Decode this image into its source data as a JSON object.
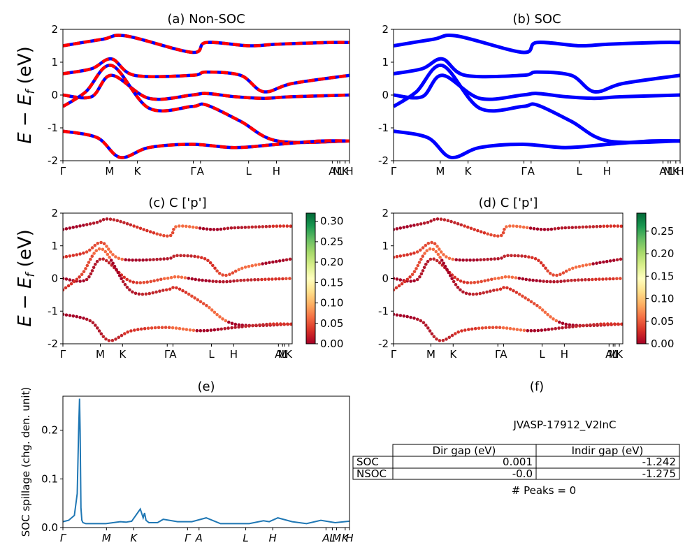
{
  "colors": {
    "nonsoc_red": "#ff0000",
    "nonsoc_blue": "#0000ff",
    "soc_blue": "#0000ff",
    "spillage_line": "#1f77b4"
  },
  "kpath_labels": [
    "Γ",
    "M",
    "K",
    "Γ",
    "A",
    "L",
    "H",
    "A",
    "M",
    "L",
    "K",
    "H"
  ],
  "kpath_labels_italic": [
    "Γ",
    "M",
    "K",
    "Γ",
    "A",
    "L",
    "H",
    "A",
    "L",
    "M",
    "K",
    "H"
  ],
  "bands_ylabel": "E − E_f (eV)",
  "chart_data": [
    {
      "id": "a",
      "type": "line",
      "title": "(a) Non-SOC",
      "ylabel": "E − E_f (eV)",
      "ylim": [
        -2,
        2
      ],
      "yticks": [
        -2,
        -1,
        0,
        1,
        2
      ],
      "xticklabels": [
        "Γ",
        "M",
        "K",
        "Γ",
        "A",
        "L",
        "H",
        "A",
        "M",
        "L",
        "K",
        "H"
      ],
      "series": [
        {
          "values_x": [
            0,
            0.14,
            0.22,
            0.45,
            0.5,
            0.65,
            0.75,
            0.93,
            1.0
          ],
          "values": [
            1.5,
            1.7,
            1.8,
            1.3,
            1.6,
            1.5,
            1.55,
            1.6,
            1.6
          ]
        },
        {
          "values_x": [
            0,
            0.1,
            0.17,
            0.25,
            0.45,
            0.5,
            0.62,
            0.7,
            0.8,
            1.0
          ],
          "values": [
            0.65,
            0.8,
            1.1,
            0.6,
            0.6,
            0.7,
            0.6,
            0.1,
            0.35,
            0.6
          ]
        },
        {
          "values_x": [
            0,
            0.1,
            0.17,
            0.3,
            0.45,
            0.5,
            0.6,
            0.7,
            0.8,
            1.0
          ],
          "values": [
            0.0,
            -0.05,
            0.6,
            -0.1,
            0.0,
            0.05,
            -0.05,
            -0.1,
            -0.05,
            0.0
          ]
        },
        {
          "values_x": [
            0,
            0.08,
            0.17,
            0.3,
            0.45,
            0.5,
            0.62,
            0.75,
            1.0
          ],
          "values": [
            -0.35,
            0.1,
            0.9,
            -0.4,
            -0.35,
            -0.3,
            -0.8,
            -1.4,
            -1.4
          ]
        },
        {
          "values_x": [
            0,
            0.12,
            0.2,
            0.3,
            0.45,
            0.6,
            0.75,
            0.9,
            1.0
          ],
          "values": [
            -1.1,
            -1.3,
            -1.9,
            -1.6,
            -1.5,
            -1.6,
            -1.5,
            -1.4,
            -1.4
          ]
        }
      ]
    },
    {
      "id": "b",
      "type": "line",
      "title": "(b) SOC",
      "ylim": [
        -2,
        2
      ],
      "yticks": [
        -2,
        -1,
        0,
        1,
        2
      ],
      "xticklabels": [
        "Γ",
        "M",
        "K",
        "Γ",
        "A",
        "L",
        "H",
        "A",
        "M",
        "L",
        "K",
        "H"
      ],
      "series": [
        {
          "values_x": [
            0,
            0.14,
            0.22,
            0.45,
            0.5,
            0.65,
            0.75,
            0.93,
            1.0
          ],
          "values": [
            1.5,
            1.7,
            1.8,
            1.3,
            1.6,
            1.5,
            1.55,
            1.6,
            1.6
          ]
        },
        {
          "values_x": [
            0,
            0.1,
            0.17,
            0.25,
            0.45,
            0.5,
            0.62,
            0.7,
            0.8,
            1.0
          ],
          "values": [
            0.65,
            0.8,
            1.1,
            0.6,
            0.6,
            0.7,
            0.6,
            0.1,
            0.35,
            0.6
          ]
        },
        {
          "values_x": [
            0,
            0.1,
            0.17,
            0.3,
            0.45,
            0.5,
            0.6,
            0.7,
            0.8,
            1.0
          ],
          "values": [
            0.0,
            -0.05,
            0.6,
            -0.1,
            0.0,
            0.05,
            -0.05,
            -0.1,
            -0.05,
            0.0
          ]
        },
        {
          "values_x": [
            0,
            0.08,
            0.17,
            0.3,
            0.45,
            0.5,
            0.62,
            0.75,
            1.0
          ],
          "values": [
            -0.35,
            0.1,
            0.9,
            -0.4,
            -0.35,
            -0.3,
            -0.8,
            -1.4,
            -1.4
          ]
        },
        {
          "values_x": [
            0,
            0.12,
            0.2,
            0.3,
            0.45,
            0.6,
            0.75,
            0.9,
            1.0
          ],
          "values": [
            -1.1,
            -1.3,
            -1.9,
            -1.6,
            -1.5,
            -1.6,
            -1.5,
            -1.4,
            -1.4
          ]
        }
      ]
    },
    {
      "id": "c",
      "type": "scatter",
      "title": "(c)  C ['p']",
      "ylabel": "E − E_f (eV)",
      "ylim": [
        -2,
        2
      ],
      "yticks": [
        -2,
        -1,
        0,
        1,
        2
      ],
      "xticklabels": [
        "Γ",
        "M",
        "K",
        "Γ",
        "A",
        "L",
        "H",
        "A",
        "M",
        "L",
        "K"
      ],
      "colorbar": {
        "min": 0.0,
        "max": 0.32,
        "ticks": [
          "0.00",
          "0.05",
          "0.10",
          "0.15",
          "0.20",
          "0.25",
          "0.30"
        ]
      }
    },
    {
      "id": "d",
      "type": "scatter",
      "title": "(d) C ['p']",
      "ylim": [
        -2,
        2
      ],
      "yticks": [
        -2,
        -1,
        0,
        1,
        2
      ],
      "xticklabels": [
        "Γ",
        "M",
        "K",
        "Γ",
        "A",
        "L",
        "H",
        "A",
        "M",
        "L",
        "K"
      ],
      "colorbar": {
        "min": 0.0,
        "max": 0.29,
        "ticks": [
          "0.00",
          "0.05",
          "0.10",
          "0.15",
          "0.20",
          "0.25"
        ]
      }
    },
    {
      "id": "e",
      "type": "line",
      "title": "(e)",
      "ylabel": "SOC spillage (chg. den. unit)",
      "ylim": [
        0,
        0.27
      ],
      "yticks": [
        "0.0",
        "0.1",
        "0.2"
      ],
      "xticklabels": [
        "Γ",
        "M",
        "K",
        "Γ",
        "A",
        "L",
        "H",
        "A",
        "L",
        "M",
        "K",
        "H"
      ],
      "x": [
        0,
        0.02,
        0.04,
        0.05,
        0.055,
        0.058,
        0.06,
        0.063,
        0.066,
        0.07,
        0.08,
        0.1,
        0.15,
        0.2,
        0.22,
        0.24,
        0.27,
        0.28,
        0.285,
        0.29,
        0.3,
        0.33,
        0.35,
        0.4,
        0.45,
        0.5,
        0.55,
        0.6,
        0.65,
        0.7,
        0.72,
        0.75,
        0.8,
        0.85,
        0.9,
        0.95,
        1.0
      ],
      "values": [
        0.012,
        0.015,
        0.025,
        0.07,
        0.2,
        0.265,
        0.2,
        0.04,
        0.015,
        0.01,
        0.008,
        0.008,
        0.008,
        0.012,
        0.011,
        0.013,
        0.038,
        0.02,
        0.03,
        0.015,
        0.01,
        0.01,
        0.017,
        0.012,
        0.012,
        0.02,
        0.008,
        0.008,
        0.008,
        0.014,
        0.012,
        0.02,
        0.012,
        0.008,
        0.015,
        0.01,
        0.013
      ]
    }
  ],
  "panel_f": {
    "title": "(f)",
    "material": "JVASP-17912_V2InC",
    "table": {
      "headers": [
        "",
        "Dir gap (eV)",
        "Indir gap (eV)"
      ],
      "rows": [
        [
          "SOC",
          "0.001",
          "-1.242"
        ],
        [
          "NSOC",
          "-0.0",
          "-1.275"
        ]
      ]
    },
    "peaks": "# Peaks = 0"
  }
}
